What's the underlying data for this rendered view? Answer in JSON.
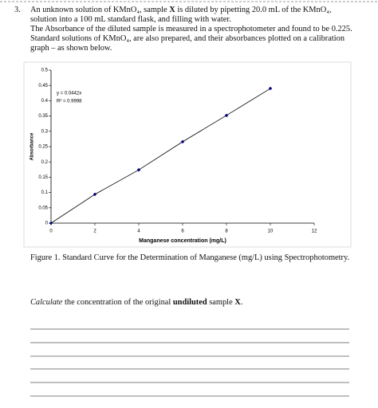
{
  "question": {
    "number": "3.",
    "paragraphs": [
      [
        "An unknown solution of KMnO₄, sample ",
        "X",
        " is diluted by pipetting 20.0 mL of the KMnO₄, solution into a 100 mL standard flask, and filling with water."
      ],
      [
        "The Absorbance of the diluted sample is measured in a spectrophotometer and found to be 0.225."
      ],
      [
        "Standard solutions of KMnO₄, are also prepared, and their absorbances plotted on a calibration graph – as shown below."
      ]
    ]
  },
  "chart_data": {
    "type": "scatter",
    "x": [
      0,
      2,
      4,
      6,
      8,
      10
    ],
    "values": [
      0,
      0.094,
      0.174,
      0.266,
      0.352,
      0.44
    ],
    "color": "#000080",
    "xlabel": "Manganese concentration (mg/L)",
    "ylabel": "Absorbance",
    "xlim": [
      0,
      12
    ],
    "xticks": [
      0,
      2,
      4,
      6,
      8,
      10,
      12
    ],
    "ylim": [
      0,
      0.5
    ],
    "yticks": [
      0,
      0.05,
      0.1,
      0.15,
      0.2,
      0.25,
      0.3,
      0.35,
      0.4,
      0.45,
      0.5
    ],
    "annotations": [
      "y = 0.0442x",
      "R² = 0.9998"
    ]
  },
  "caption": "Figure 1. Standard Curve for the Determination of Manganese (mg/L) using Spectrophotometry.",
  "instruction": [
    "Calculate",
    " the concentration of the original ",
    "undiluted",
    " sample ",
    "X",
    "."
  ]
}
